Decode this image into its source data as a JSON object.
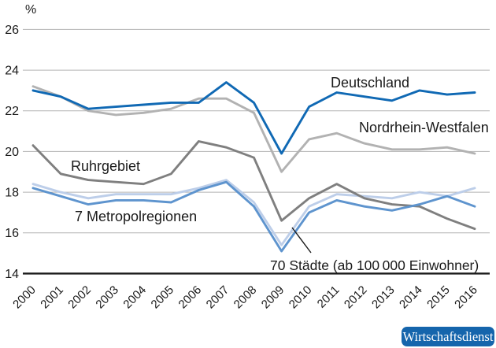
{
  "chart_data": {
    "type": "line",
    "title": "",
    "unit": "%",
    "x": [
      "2000",
      "2001",
      "2002",
      "2003",
      "2004",
      "2005",
      "2006",
      "2007",
      "2008",
      "2009",
      "2010",
      "2011",
      "2012",
      "2013",
      "2014",
      "2015",
      "2016"
    ],
    "y_ticks": [
      26,
      24,
      22,
      20,
      18,
      16,
      14
    ],
    "ylim": [
      14,
      26.8
    ],
    "grid": "horizontal",
    "legend_position": "inline-labels",
    "series": [
      {
        "name": "Deutschland",
        "color": "#1069b4",
        "values": [
          23.0,
          22.7,
          22.1,
          22.2,
          22.3,
          22.4,
          22.4,
          23.4,
          22.4,
          19.9,
          22.2,
          22.9,
          22.7,
          22.5,
          23.0,
          22.8,
          22.9
        ]
      },
      {
        "name": "Nordrhein-Westfalen",
        "color": "#b2b2b2",
        "values": [
          23.2,
          22.7,
          22.0,
          21.8,
          21.9,
          22.1,
          22.6,
          22.6,
          21.9,
          19.0,
          20.6,
          20.9,
          20.4,
          20.1,
          20.1,
          20.2,
          19.9
        ]
      },
      {
        "name": "Ruhrgebiet",
        "color": "#7f7f7f",
        "values": [
          20.3,
          18.9,
          18.6,
          18.5,
          18.4,
          18.9,
          20.5,
          20.2,
          19.7,
          16.6,
          17.7,
          18.4,
          17.7,
          17.4,
          17.3,
          16.7,
          16.2
        ]
      },
      {
        "name": "7 Metropolregionen",
        "color": "#5e94ce",
        "values": [
          18.2,
          17.8,
          17.4,
          17.6,
          17.6,
          17.5,
          18.1,
          18.5,
          17.3,
          15.1,
          17.0,
          17.6,
          17.3,
          17.1,
          17.4,
          17.8,
          17.3
        ]
      },
      {
        "name": "70 Städte (ab 100 000 Einwohner)",
        "color": "#bdcee9",
        "values": [
          18.4,
          18.0,
          17.7,
          17.9,
          17.9,
          17.9,
          18.2,
          18.6,
          17.5,
          15.4,
          17.3,
          17.9,
          17.8,
          17.7,
          18.0,
          17.8,
          18.2
        ]
      }
    ]
  },
  "badge": {
    "label": "Wirtschaftsdienst",
    "bg": "#1565ac"
  },
  "colors": {
    "grid": "#b3b3b3",
    "axis": "#1a1a1a",
    "text": "#1a1a1a"
  }
}
